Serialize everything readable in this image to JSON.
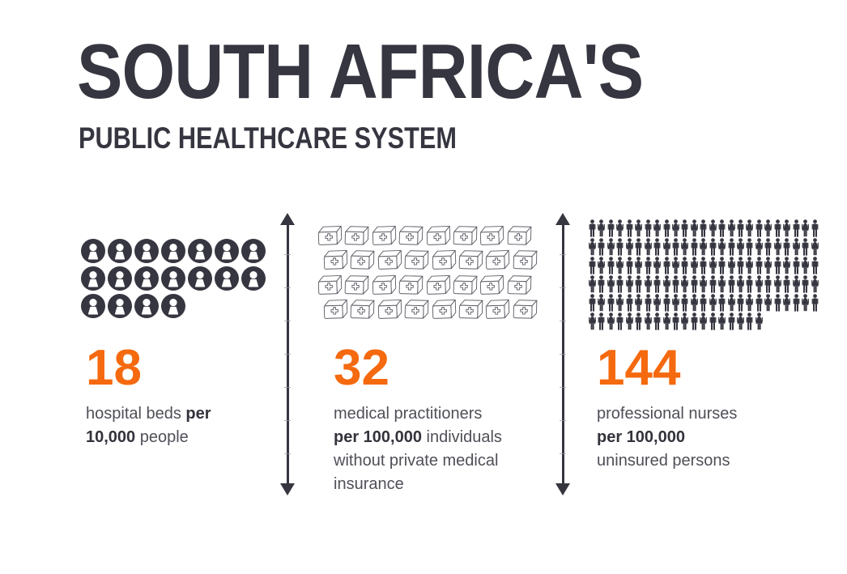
{
  "title": "SOUTH AFRICA'S",
  "subtitle": "PUBLIC HEALTHCARE SYSTEM",
  "colors": {
    "navy": "#363641",
    "orange": "#f5690f",
    "label": "#4f4f58",
    "label_bold": "#33333c",
    "kit_outline": "#5f5f69"
  },
  "stats": [
    {
      "id": "hospital-beds",
      "value": "18",
      "icon": "person-circle-icon",
      "icon_count": 18,
      "icons_per_row": 7,
      "label_lines": [
        [
          {
            "t": "hospital beds ",
            "b": false
          },
          {
            "t": "per",
            "b": true
          }
        ],
        [
          {
            "t": "10,000",
            "b": true
          },
          {
            "t": " people",
            "b": false
          }
        ]
      ]
    },
    {
      "id": "medical-practitioners",
      "value": "32",
      "icon": "medkit-icon",
      "icon_count": 32,
      "icons_per_row": 8,
      "label_lines": [
        [
          {
            "t": "medical practitioners",
            "b": false
          }
        ],
        [
          {
            "t": "per 100,000",
            "b": true
          },
          {
            "t": " individuals",
            "b": false
          }
        ],
        [
          {
            "t": "without private medical",
            "b": false
          }
        ],
        [
          {
            "t": "insurance",
            "b": false
          }
        ]
      ]
    },
    {
      "id": "professional-nurses",
      "value": "144",
      "icon": "person-figure-icon",
      "icon_count": 144,
      "icons_per_row": 25,
      "label_lines": [
        [
          {
            "t": "professional nurses",
            "b": false
          }
        ],
        [
          {
            "t": "per 100,000",
            "b": true
          }
        ],
        [
          {
            "t": "uninsured persons",
            "b": false
          }
        ]
      ]
    }
  ],
  "chart_data": {
    "type": "pictograph",
    "title": "SOUTH AFRICA'S PUBLIC HEALTHCARE SYSTEM",
    "categories": [
      "hospital beds per 10,000 people",
      "medical practitioners per 100,000 individuals without private medical insurance",
      "professional nurses per 100,000 uninsured persons"
    ],
    "values": [
      18,
      32,
      144
    ],
    "units": [
      "person-in-circle icon",
      "first-aid-kit icon",
      "person silhouette icon"
    ],
    "legend_position": "none",
    "grid": false
  }
}
